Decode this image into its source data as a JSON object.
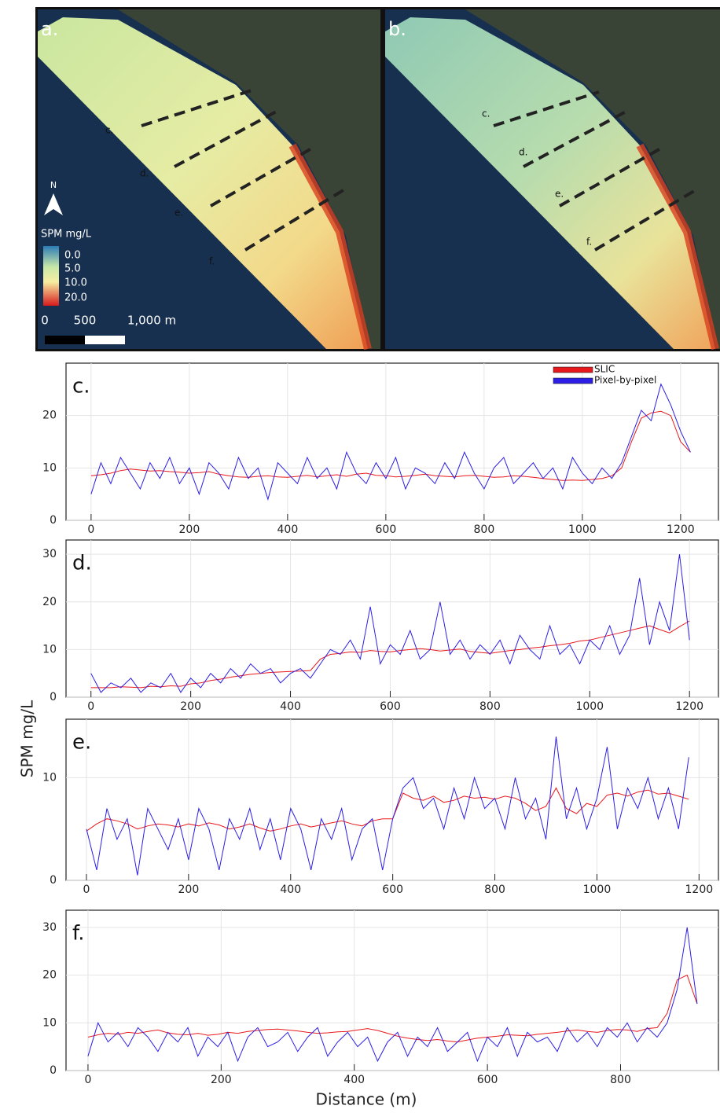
{
  "maps": {
    "panels": [
      {
        "label": "a.",
        "transect_labels": [
          "c.",
          "d.",
          "e.",
          "f."
        ]
      },
      {
        "label": "b.",
        "transect_labels": [
          "c.",
          "d.",
          "e.",
          "f."
        ]
      }
    ],
    "north": "N",
    "legend_title": "SPM mg/L",
    "legend_labels": [
      "0.0",
      "5.0",
      "10.0",
      "20.0"
    ],
    "scale_labels": [
      "0",
      "500",
      "1,000 m"
    ]
  },
  "figure": {
    "ylabel": "SPM mg/L",
    "xlabel": "Distance (m)"
  },
  "chart_data": [
    {
      "type": "line",
      "title": "c.",
      "legend": "top-right",
      "xlim": [
        -51,
        1277
      ],
      "ylim": [
        0,
        30
      ],
      "xticks": [
        0,
        200,
        400,
        600,
        800,
        1000,
        1200
      ],
      "yticks": [
        0,
        10,
        20
      ],
      "grid": true,
      "x": [
        0,
        20,
        40,
        60,
        80,
        100,
        120,
        140,
        160,
        180,
        200,
        220,
        240,
        260,
        280,
        300,
        320,
        340,
        360,
        380,
        400,
        420,
        440,
        460,
        480,
        500,
        520,
        540,
        560,
        580,
        600,
        620,
        640,
        660,
        680,
        700,
        720,
        740,
        760,
        780,
        800,
        820,
        840,
        860,
        880,
        900,
        920,
        940,
        960,
        980,
        1000,
        1020,
        1040,
        1060,
        1080,
        1100,
        1120,
        1140,
        1160,
        1180,
        1200,
        1220
      ],
      "series": [
        {
          "name": "SLIC",
          "color": "#e8191c",
          "values": [
            8.5,
            8.7,
            9,
            9.5,
            9.8,
            9.6,
            9.4,
            9.5,
            9.3,
            9.2,
            9,
            9.1,
            9.3,
            8.8,
            8.5,
            8.3,
            8.2,
            8.4,
            8.5,
            8.3,
            8.2,
            8.4,
            8.6,
            8.3,
            8.5,
            8.7,
            8.4,
            8.8,
            9,
            8.6,
            8.5,
            8.3,
            8.4,
            8.6,
            8.8,
            8.5,
            8.4,
            8.3,
            8.5,
            8.6,
            8.4,
            8.2,
            8.3,
            8.5,
            8.4,
            8.2,
            8,
            7.8,
            7.6,
            7.7,
            7.6,
            7.8,
            8,
            8.5,
            10,
            15,
            19.5,
            20.5,
            20.8,
            20,
            15,
            13
          ]
        },
        {
          "name": "Pixel-by-pixel",
          "color": "#2c1ee6",
          "values": [
            5,
            11,
            7,
            12,
            9,
            6,
            11,
            8,
            12,
            7,
            10,
            5,
            11,
            9,
            6,
            12,
            8,
            10,
            4,
            11,
            9,
            7,
            12,
            8,
            10,
            6,
            13,
            9,
            7,
            11,
            8,
            12,
            6,
            10,
            9,
            7,
            11,
            8,
            13,
            9,
            6,
            10,
            12,
            7,
            9,
            11,
            8,
            10,
            6,
            12,
            9,
            7,
            10,
            8,
            11,
            16,
            21,
            19,
            26,
            22,
            17,
            13
          ]
        }
      ]
    },
    {
      "type": "line",
      "title": "d.",
      "xlim": [
        -50,
        1258
      ],
      "ylim": [
        0,
        33
      ],
      "xticks": [
        0,
        200,
        400,
        600,
        800,
        1000,
        1200
      ],
      "yticks": [
        0,
        10,
        20,
        30
      ],
      "grid": true,
      "x": [
        0,
        20,
        40,
        60,
        80,
        100,
        120,
        140,
        160,
        180,
        200,
        220,
        240,
        260,
        280,
        300,
        320,
        340,
        360,
        380,
        400,
        420,
        440,
        460,
        480,
        500,
        520,
        540,
        560,
        580,
        600,
        620,
        640,
        660,
        680,
        700,
        720,
        740,
        760,
        780,
        800,
        820,
        840,
        860,
        880,
        900,
        920,
        940,
        960,
        980,
        1000,
        1020,
        1040,
        1060,
        1080,
        1100,
        1120,
        1140,
        1160,
        1180,
        1200
      ],
      "series": [
        {
          "color": "#e8191c",
          "values": [
            2,
            2,
            2,
            2.2,
            2.1,
            2,
            2.3,
            2.2,
            2.4,
            2.3,
            2.8,
            3,
            3.5,
            3.8,
            4.2,
            4.5,
            4.8,
            5,
            5.2,
            5.3,
            5.4,
            5.5,
            5.6,
            8,
            9,
            9.2,
            9.5,
            9.4,
            9.8,
            9.6,
            9.5,
            9.8,
            10,
            10.2,
            10,
            9.7,
            9.9,
            10.1,
            9.6,
            9.4,
            9.2,
            9.5,
            9.8,
            10,
            10.3,
            10.5,
            10.8,
            11,
            11.3,
            11.8,
            12,
            12.5,
            13,
            13.5,
            14,
            14.5,
            15,
            14.2,
            13.5,
            14.8,
            16
          ]
        },
        {
          "color": "#2c1ee6",
          "values": [
            5,
            1,
            3,
            2,
            4,
            1,
            3,
            2,
            5,
            1,
            4,
            2,
            5,
            3,
            6,
            4,
            7,
            5,
            6,
            3,
            5,
            6,
            4,
            7,
            10,
            9,
            12,
            8,
            19,
            7,
            11,
            9,
            14,
            8,
            10,
            20,
            9,
            12,
            8,
            11,
            9,
            12,
            7,
            13,
            10,
            8,
            15,
            9,
            11,
            7,
            12,
            10,
            15,
            9,
            13,
            25,
            11,
            20,
            14,
            30,
            12
          ]
        }
      ]
    },
    {
      "type": "line",
      "title": "e.",
      "xlim": [
        -40,
        1238
      ],
      "ylim": [
        0,
        15.7
      ],
      "xticks": [
        0,
        200,
        400,
        600,
        800,
        1000,
        1200
      ],
      "yticks": [
        0,
        10
      ],
      "grid": true,
      "x": [
        0,
        20,
        40,
        60,
        80,
        100,
        120,
        140,
        160,
        180,
        200,
        220,
        240,
        260,
        280,
        300,
        320,
        340,
        360,
        380,
        400,
        420,
        440,
        460,
        480,
        500,
        520,
        540,
        560,
        580,
        600,
        620,
        640,
        660,
        680,
        700,
        720,
        740,
        760,
        780,
        800,
        820,
        840,
        860,
        880,
        900,
        920,
        940,
        960,
        980,
        1000,
        1020,
        1040,
        1060,
        1080,
        1100,
        1120,
        1140,
        1160,
        1180
      ],
      "series": [
        {
          "color": "#e8191c",
          "values": [
            4.8,
            5.5,
            6,
            5.8,
            5.5,
            5,
            5.3,
            5.5,
            5.4,
            5.2,
            5.5,
            5.3,
            5.6,
            5.4,
            5,
            5.2,
            5.5,
            5.1,
            4.8,
            5,
            5.3,
            5.5,
            5.2,
            5.4,
            5.6,
            5.8,
            5.5,
            5.3,
            5.8,
            6,
            6,
            8.5,
            8,
            7.8,
            8.2,
            7.6,
            7.8,
            8.2,
            8,
            8.1,
            7.9,
            8.2,
            8,
            7.5,
            6.8,
            7.2,
            9,
            7,
            6.5,
            7.5,
            7.2,
            8.3,
            8.5,
            8.2,
            8.6,
            8.8,
            8.4,
            8.5,
            8.2,
            7.9
          ]
        },
        {
          "color": "#2c1ee6",
          "values": [
            5,
            1,
            7,
            4,
            6,
            0.5,
            7,
            5,
            3,
            6,
            2,
            7,
            5,
            1,
            6,
            4,
            7,
            3,
            6,
            2,
            7,
            5,
            1,
            6,
            4,
            7,
            2,
            5,
            6,
            1,
            6,
            9,
            10,
            7,
            8,
            5,
            9,
            6,
            10,
            7,
            8,
            5,
            10,
            6,
            8,
            4,
            14,
            6,
            9,
            5,
            8,
            13,
            5,
            9,
            7,
            10,
            6,
            9,
            5,
            12
          ]
        }
      ]
    },
    {
      "type": "line",
      "title": "f.",
      "xlim": [
        -33,
        947
      ],
      "ylim": [
        0,
        33.6
      ],
      "xticks": [
        0,
        200,
        400,
        600,
        800
      ],
      "yticks": [
        0,
        10,
        20,
        30
      ],
      "grid": true,
      "x": [
        0,
        15,
        30,
        45,
        60,
        75,
        90,
        105,
        120,
        135,
        150,
        165,
        180,
        195,
        210,
        225,
        240,
        255,
        270,
        285,
        300,
        315,
        330,
        345,
        360,
        375,
        390,
        405,
        420,
        435,
        450,
        465,
        480,
        495,
        510,
        525,
        540,
        555,
        570,
        585,
        600,
        615,
        630,
        645,
        660,
        675,
        690,
        705,
        720,
        735,
        750,
        765,
        780,
        795,
        810,
        825,
        840,
        855,
        870,
        885,
        900,
        915
      ],
      "series": [
        {
          "color": "#e8191c",
          "values": [
            7,
            7.5,
            7.8,
            7.6,
            8,
            7.8,
            8.2,
            8.5,
            7.9,
            7.6,
            7.5,
            7.8,
            7.4,
            7.6,
            8,
            7.8,
            8.2,
            8.4,
            8.6,
            8.7,
            8.5,
            8.3,
            8,
            7.8,
            7.9,
            8.1,
            8.2,
            8.5,
            8.8,
            8.4,
            7.8,
            7.2,
            6.8,
            6.5,
            6.3,
            6.5,
            6.2,
            6,
            6.4,
            6.8,
            7,
            7.2,
            7.5,
            7.4,
            7.3,
            7.6,
            7.8,
            8,
            8.3,
            8.5,
            8.2,
            8,
            8.4,
            8.6,
            8.5,
            8.2,
            8.8,
            9,
            12,
            19,
            20,
            14
          ]
        },
        {
          "color": "#2c1ee6",
          "values": [
            3,
            10,
            6,
            8,
            5,
            9,
            7,
            4,
            8,
            6,
            9,
            3,
            7,
            5,
            8,
            2,
            7,
            9,
            5,
            6,
            8,
            4,
            7,
            9,
            3,
            6,
            8,
            5,
            7,
            2,
            6,
            8,
            3,
            7,
            5,
            9,
            4,
            6,
            8,
            2,
            7,
            5,
            9,
            3,
            8,
            6,
            7,
            4,
            9,
            6,
            8,
            5,
            9,
            7,
            10,
            6,
            9,
            7,
            10,
            17,
            30,
            14
          ]
        }
      ]
    }
  ]
}
